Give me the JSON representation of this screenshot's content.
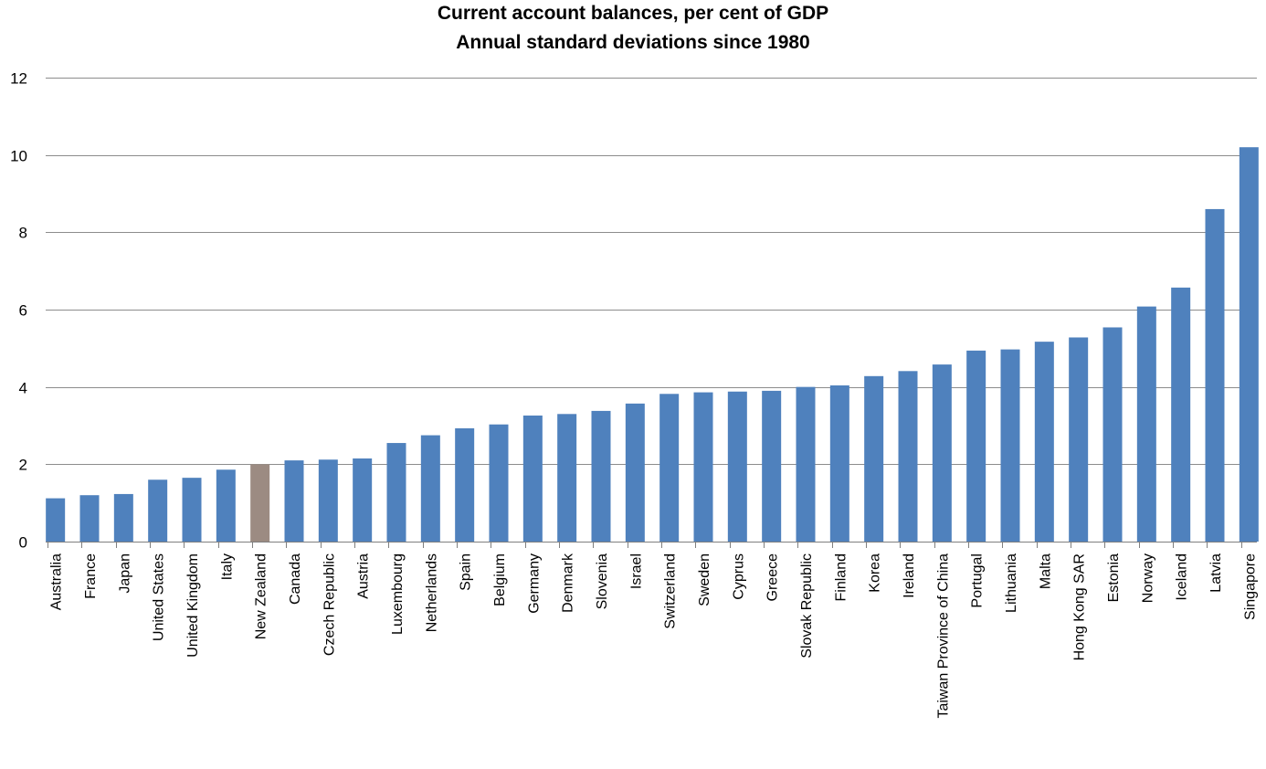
{
  "chart_data": {
    "type": "bar",
    "title": "Current account balances, per cent of GDP",
    "subtitle": "Annual standard deviations since 1980",
    "xlabel": "",
    "ylabel": "",
    "ylim": [
      0,
      12
    ],
    "yticks": [
      0,
      2,
      4,
      6,
      8,
      10,
      12
    ],
    "grid": true,
    "legend": "none",
    "colors": {
      "default": "#4f81bd",
      "highlight": "#9c8b82",
      "grid": "#8c8c8c",
      "axis": "#7f7f7f"
    },
    "highlight_category": "New Zealand",
    "categories": [
      "Australia",
      "France",
      "Japan",
      "United States",
      "United Kingdom",
      "Italy",
      "New Zealand",
      "Canada",
      "Czech Republic",
      "Austria",
      "Luxembourg",
      "Netherlands",
      "Spain",
      "Belgium",
      "Germany",
      "Denmark",
      "Slovenia",
      "Israel",
      "Switzerland",
      "Sweden",
      "Cyprus",
      "Greece",
      "Slovak Republic",
      "Finland",
      "Korea",
      "Ireland",
      "Taiwan Province of China",
      "Portugal",
      "Lithuania",
      "Malta",
      "Hong Kong SAR",
      "Estonia",
      "Norway",
      "Iceland",
      "Latvia",
      "Singapore"
    ],
    "values": [
      1.12,
      1.2,
      1.23,
      1.6,
      1.65,
      1.86,
      2.0,
      2.1,
      2.12,
      2.15,
      2.55,
      2.75,
      2.93,
      3.03,
      3.26,
      3.3,
      3.38,
      3.57,
      3.82,
      3.86,
      3.88,
      3.9,
      4.0,
      4.04,
      4.28,
      4.41,
      4.58,
      4.94,
      4.97,
      5.17,
      5.28,
      5.54,
      6.08,
      6.57,
      8.6,
      10.2
    ]
  }
}
